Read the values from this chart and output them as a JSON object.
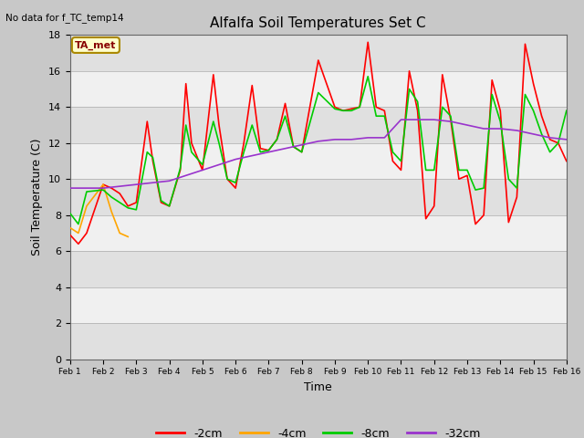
{
  "title": "Alfalfa Soil Temperatures Set C",
  "xlabel": "Time",
  "ylabel": "Soil Temperature (C)",
  "no_data_text": "No data for f_TC_temp14",
  "ta_met_label": "TA_met",
  "ylim": [
    0,
    18
  ],
  "yticks": [
    0,
    2,
    4,
    6,
    8,
    10,
    12,
    14,
    16,
    18
  ],
  "xlim": [
    0,
    15
  ],
  "xtick_labels": [
    "Feb 1",
    "Feb 2",
    "Feb 3",
    "Feb 4",
    "Feb 5",
    "Feb 6",
    "Feb 7",
    "Feb 8",
    "Feb 9",
    "Feb 10",
    "Feb 11",
    "Feb 12",
    "Feb 13",
    "Feb 14",
    "Feb 15",
    "Feb 16"
  ],
  "fig_bg": "#c8c8c8",
  "plot_bg_light": "#f0f0f0",
  "plot_bg_dark": "#e0e0e0",
  "series": {
    "-2cm": {
      "color": "#ff0000",
      "x": [
        0,
        0.25,
        0.5,
        1.0,
        1.25,
        1.5,
        1.75,
        2.0,
        2.33,
        2.5,
        2.75,
        3.0,
        3.33,
        3.5,
        3.67,
        4.0,
        4.33,
        4.5,
        4.75,
        5.0,
        5.25,
        5.5,
        5.75,
        6.0,
        6.25,
        6.5,
        6.75,
        7.0,
        7.5,
        8.0,
        8.25,
        8.5,
        8.75,
        9.0,
        9.25,
        9.5,
        9.75,
        10.0,
        10.25,
        10.5,
        10.75,
        11.0,
        11.25,
        11.5,
        11.75,
        12.0,
        12.25,
        12.5,
        12.75,
        13.0,
        13.25,
        13.5,
        13.75,
        14.0,
        14.25,
        14.5,
        14.75,
        15.0
      ],
      "y": [
        6.9,
        6.4,
        7.0,
        9.7,
        9.5,
        9.2,
        8.5,
        8.7,
        13.2,
        11.0,
        8.7,
        8.5,
        10.5,
        15.3,
        12.0,
        10.5,
        15.8,
        13.0,
        10.0,
        9.5,
        12.0,
        15.2,
        11.7,
        11.6,
        12.2,
        14.2,
        11.8,
        11.5,
        16.6,
        14.0,
        13.8,
        13.9,
        14.0,
        17.6,
        14.0,
        13.8,
        11.0,
        10.5,
        16.0,
        13.8,
        7.8,
        8.5,
        15.8,
        13.3,
        10.0,
        10.2,
        7.5,
        8.0,
        15.5,
        13.8,
        7.6,
        9.0,
        17.5,
        15.3,
        13.5,
        12.2,
        12.0,
        11.0
      ]
    },
    "-4cm": {
      "color": "#ffa500",
      "x": [
        0,
        0.25,
        0.5,
        1.0,
        1.25,
        1.5,
        1.75
      ],
      "y": [
        7.3,
        7.0,
        8.5,
        9.7,
        8.2,
        7.0,
        6.8
      ]
    },
    "-8cm": {
      "color": "#00cc00",
      "x": [
        0,
        0.25,
        0.5,
        1.0,
        1.25,
        1.5,
        1.75,
        2.0,
        2.33,
        2.5,
        2.75,
        3.0,
        3.33,
        3.5,
        3.67,
        4.0,
        4.33,
        4.5,
        4.75,
        5.0,
        5.25,
        5.5,
        5.75,
        6.0,
        6.25,
        6.5,
        6.75,
        7.0,
        7.5,
        8.0,
        8.25,
        8.5,
        8.75,
        9.0,
        9.25,
        9.5,
        9.75,
        10.0,
        10.25,
        10.5,
        10.75,
        11.0,
        11.25,
        11.5,
        11.75,
        12.0,
        12.25,
        12.5,
        12.75,
        13.0,
        13.25,
        13.5,
        13.75,
        14.0,
        14.25,
        14.5,
        14.75,
        15.0
      ],
      "y": [
        8.1,
        7.5,
        9.3,
        9.4,
        9.0,
        8.7,
        8.4,
        8.3,
        11.5,
        11.2,
        8.8,
        8.5,
        10.6,
        13.0,
        11.5,
        10.8,
        13.2,
        12.0,
        10.0,
        9.8,
        11.5,
        13.0,
        11.5,
        11.6,
        12.2,
        13.5,
        11.8,
        11.5,
        14.8,
        13.9,
        13.8,
        13.8,
        14.0,
        15.7,
        13.5,
        13.5,
        11.5,
        11.0,
        15.0,
        14.3,
        10.5,
        10.5,
        14.0,
        13.5,
        10.5,
        10.5,
        9.4,
        9.5,
        14.7,
        13.2,
        10.0,
        9.5,
        14.7,
        13.8,
        12.5,
        11.5,
        12.0,
        13.8
      ]
    },
    "-32cm": {
      "color": "#9933cc",
      "x": [
        0,
        0.5,
        1.0,
        1.5,
        2.0,
        2.5,
        3.0,
        3.5,
        4.0,
        4.5,
        5.0,
        5.5,
        6.0,
        6.5,
        7.0,
        7.5,
        8.0,
        8.5,
        9.0,
        9.5,
        10.0,
        10.5,
        11.0,
        11.5,
        12.0,
        12.5,
        13.0,
        13.5,
        14.0,
        14.5,
        15.0
      ],
      "y": [
        9.5,
        9.5,
        9.5,
        9.6,
        9.7,
        9.8,
        9.9,
        10.2,
        10.5,
        10.8,
        11.1,
        11.3,
        11.5,
        11.7,
        11.9,
        12.1,
        12.2,
        12.2,
        12.3,
        12.3,
        13.3,
        13.3,
        13.3,
        13.2,
        13.0,
        12.8,
        12.8,
        12.7,
        12.5,
        12.3,
        12.2
      ]
    }
  },
  "legend": [
    {
      "label": "-2cm",
      "color": "#ff0000"
    },
    {
      "label": "-4cm",
      "color": "#ffa500"
    },
    {
      "label": "-8cm",
      "color": "#00cc00"
    },
    {
      "label": "-32cm",
      "color": "#9933cc"
    }
  ]
}
